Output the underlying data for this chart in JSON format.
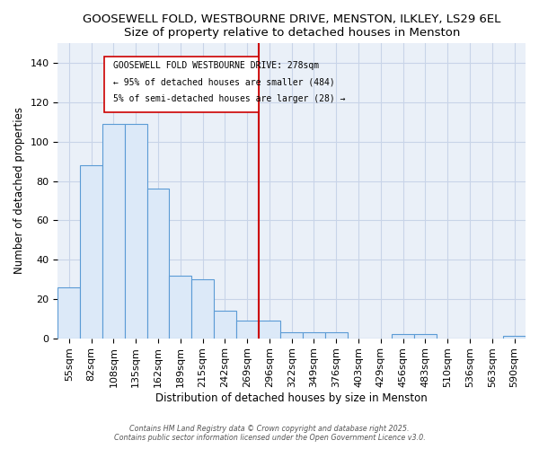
{
  "title1": "GOOSEWELL FOLD, WESTBOURNE DRIVE, MENSTON, ILKLEY, LS29 6EL",
  "title2": "Size of property relative to detached houses in Menston",
  "xlabel": "Distribution of detached houses by size in Menston",
  "ylabel": "Number of detached properties",
  "categories": [
    "55sqm",
    "82sqm",
    "108sqm",
    "135sqm",
    "162sqm",
    "189sqm",
    "215sqm",
    "242sqm",
    "269sqm",
    "296sqm",
    "322sqm",
    "349sqm",
    "376sqm",
    "403sqm",
    "429sqm",
    "456sqm",
    "483sqm",
    "510sqm",
    "536sqm",
    "563sqm",
    "590sqm"
  ],
  "values": [
    26,
    88,
    109,
    109,
    76,
    32,
    30,
    14,
    9,
    9,
    3,
    3,
    3,
    0,
    0,
    2,
    2,
    0,
    0,
    0,
    1
  ],
  "bar_color": "#dce9f8",
  "bar_edge_color": "#5b9bd5",
  "vline_color": "#cc0000",
  "vline_x": 8.5,
  "ylim": [
    0,
    150
  ],
  "yticks": [
    0,
    20,
    40,
    60,
    80,
    100,
    120,
    140
  ],
  "annot_line1": "GOOSEWELL FOLD WESTBOURNE DRIVE: 278sqm",
  "annot_line2": "← 95% of detached houses are smaller (484)",
  "annot_line3": "5% of semi-detached houses are larger (28) →",
  "footer1": "Contains HM Land Registry data © Crown copyright and database right 2025.",
  "footer2": "Contains public sector information licensed under the Open Government Licence v3.0.",
  "bg_color": "#ffffff",
  "grid_color": "#c8d4e8",
  "plot_bg": "#eaf0f8"
}
